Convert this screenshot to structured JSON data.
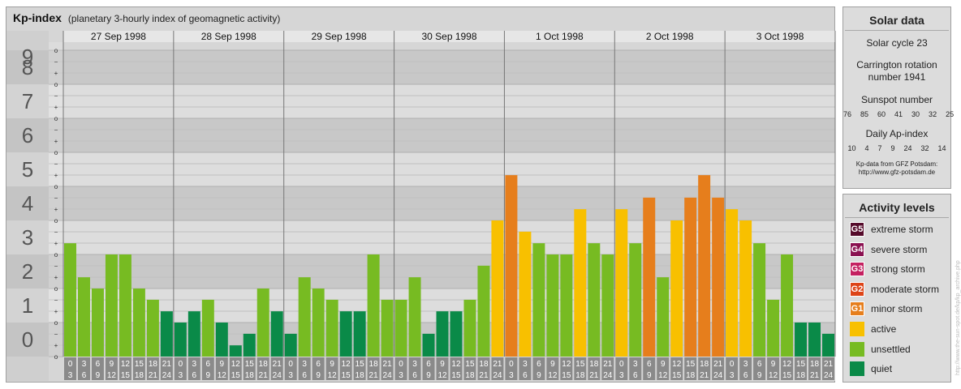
{
  "header": {
    "title": "Kp-index",
    "subtitle": "(planetary 3-hourly index of geomagnetic activity)"
  },
  "chart_data": {
    "type": "bar",
    "ylim": [
      0,
      9.33
    ],
    "y_major_labels": [
      "0",
      "1",
      "2",
      "3",
      "4",
      "5",
      "6",
      "7",
      "8",
      "9"
    ],
    "y_minor_labels": [
      "o",
      "+",
      "−"
    ],
    "days": [
      "27 Sep 1998",
      "28 Sep 1998",
      "29 Sep 1998",
      "30 Sep 1998",
      "1 Oct 1998",
      "2 Oct 1998",
      "3 Oct 1998"
    ],
    "interval_top": [
      "0",
      "3",
      "6",
      "9",
      "12",
      "15",
      "18",
      "21"
    ],
    "interval_bottom": [
      "3",
      "6",
      "9",
      "12",
      "15",
      "18",
      "21",
      "24"
    ],
    "values": [
      3.33,
      2.33,
      2.0,
      3.0,
      3.0,
      2.0,
      1.67,
      1.33,
      1.0,
      1.33,
      1.67,
      1.0,
      0.33,
      0.67,
      2.0,
      1.33,
      0.67,
      2.33,
      2.0,
      1.67,
      1.33,
      1.33,
      3.0,
      1.67,
      1.67,
      2.33,
      0.67,
      1.33,
      1.33,
      1.67,
      2.67,
      4.0,
      5.33,
      3.67,
      3.33,
      3.0,
      3.0,
      4.33,
      3.33,
      3.0,
      4.33,
      3.33,
      4.67,
      2.33,
      4.0,
      4.67,
      5.33,
      4.67,
      4.33,
      4.0,
      3.33,
      1.67,
      3.0,
      1.0,
      1.0,
      0.67
    ],
    "level_colors": {
      "quiet": "#0a8a48",
      "unsettled": "#77bb22",
      "active": "#f8c000",
      "G1": "#e67e1c",
      "G2": "#dd4418",
      "G3": "#c42060",
      "G4": "#8a1050",
      "G5": "#550a2a"
    }
  },
  "solar": {
    "title": "Solar data",
    "cycle": "Solar cycle 23",
    "carrington_1": "Carrington rotation",
    "carrington_2": "number 1941",
    "sunspot_label": "Sunspot number",
    "sunspot_values": "76  85  60  41  30  32  25",
    "ap_label": "Daily Ap-index",
    "ap_values": "10  4  7  9  24  32  14",
    "credit_1": "Kp-data from GFZ Potsdam:",
    "credit_2": "http://www.gfz-potsdam.de"
  },
  "activity": {
    "title": "Activity levels",
    "items": [
      {
        "badge": "G5",
        "label": "extreme storm",
        "color": "#550a2a"
      },
      {
        "badge": "G4",
        "label": "severe storm",
        "color": "#8a1050"
      },
      {
        "badge": "G3",
        "label": "strong storm",
        "color": "#c42060"
      },
      {
        "badge": "G2",
        "label": "moderate storm",
        "color": "#dd4418"
      },
      {
        "badge": "G1",
        "label": "minor storm",
        "color": "#e67e1c"
      },
      {
        "badge": "",
        "label": "active",
        "color": "#f8c000"
      },
      {
        "badge": "",
        "label": "unsettled",
        "color": "#77bb22"
      },
      {
        "badge": "",
        "label": "quiet",
        "color": "#0a8a48"
      }
    ]
  },
  "watermark": "http://www.the-sun-spot.de/kp/kp_archive.php"
}
